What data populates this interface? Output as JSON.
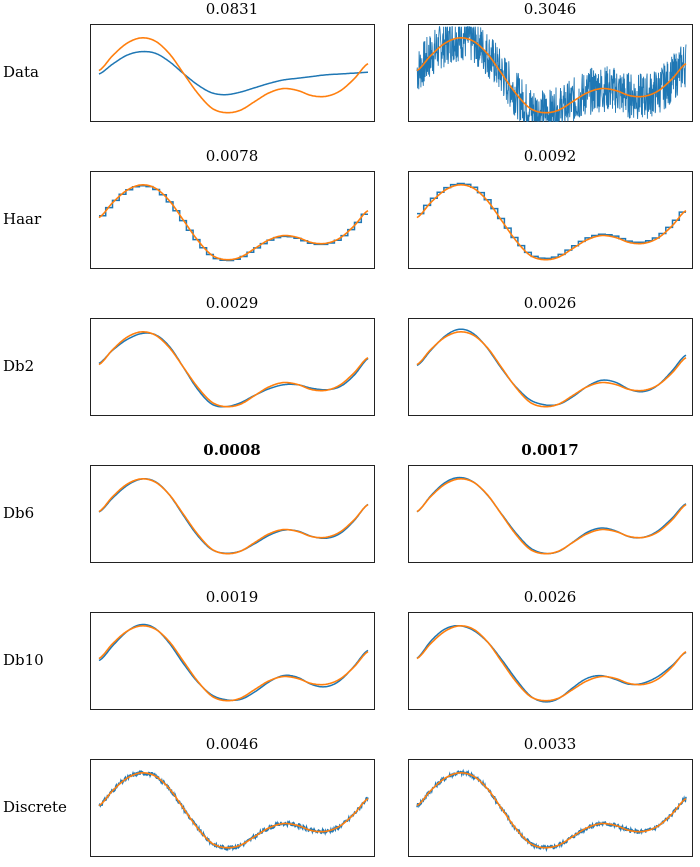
{
  "figure": {
    "rows": [
      {
        "label": "Data",
        "titles": [
          "0.0831",
          "0.3046"
        ],
        "bold": [
          false,
          false
        ],
        "mode": [
          "smooth",
          "noisy"
        ]
      },
      {
        "label": "Haar",
        "titles": [
          "0.0078",
          "0.0092"
        ],
        "bold": [
          false,
          false
        ],
        "mode": [
          "step",
          "step"
        ]
      },
      {
        "label": "Db2",
        "titles": [
          "0.0029",
          "0.0026"
        ],
        "bold": [
          false,
          false
        ],
        "mode": [
          "close",
          "close"
        ]
      },
      {
        "label": "Db6",
        "titles": [
          "0.0008",
          "0.0017"
        ],
        "bold": [
          true,
          true
        ],
        "mode": [
          "close",
          "close"
        ]
      },
      {
        "label": "Db10",
        "titles": [
          "0.0019",
          "0.0026"
        ],
        "bold": [
          false,
          false
        ],
        "mode": [
          "close",
          "close"
        ]
      },
      {
        "label": "Discrete",
        "titles": [
          "0.0046",
          "0.0033"
        ],
        "bold": [
          false,
          false
        ],
        "mode": [
          "jitter",
          "jitter"
        ]
      }
    ]
  },
  "colors": {
    "approximation": "#1f77b4",
    "target": "#ff7f0e"
  },
  "chart_data": {
    "type": "line",
    "title": "",
    "xlabel": "",
    "ylabel": "",
    "grid": false,
    "columns": 2,
    "series": [
      {
        "values": [
          0.54,
          0.72,
          0.86,
          0.92,
          0.88,
          0.73,
          0.5,
          0.27,
          0.1,
          0.05,
          0.08,
          0.18,
          0.28,
          0.33,
          0.31,
          0.25,
          0.24,
          0.3,
          0.44,
          0.62
        ]
      },
      {
        "values": [
          0.5,
          0.62,
          0.72,
          0.76,
          0.74,
          0.64,
          0.5,
          0.37,
          0.28,
          0.26,
          0.29,
          0.34,
          0.39,
          0.43,
          0.45,
          0.47,
          0.49,
          0.5,
          0.51,
          0.52
        ]
      }
    ]
  }
}
